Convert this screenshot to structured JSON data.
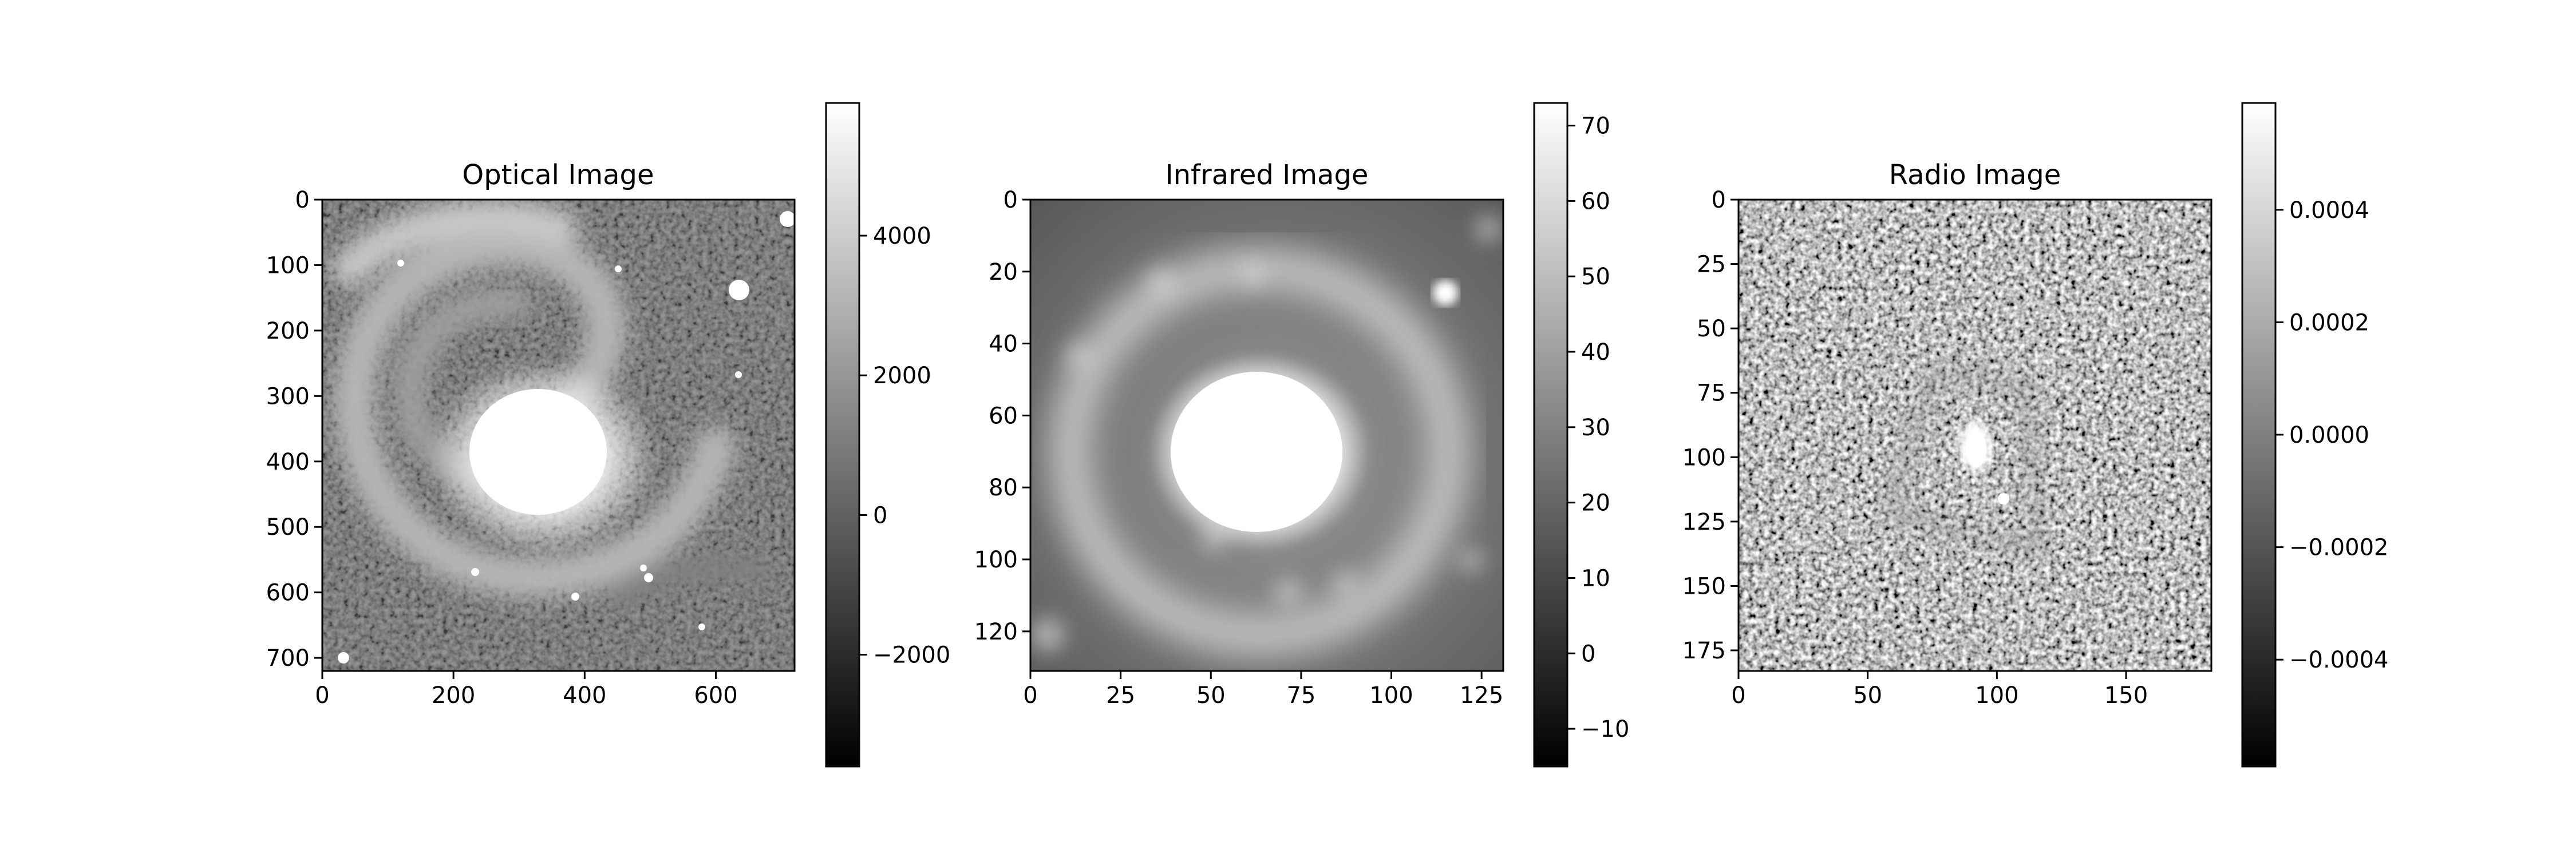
{
  "chart_data": [
    {
      "type": "heatmap",
      "title": "Optical Image",
      "colormap": "gray",
      "x_ticks": [
        "0",
        "200",
        "400",
        "600"
      ],
      "y_ticks": [
        "0",
        "100",
        "200",
        "300",
        "400",
        "500",
        "600",
        "700"
      ],
      "xlim": [
        0,
        720
      ],
      "ylim": [
        720,
        0
      ],
      "colorbar_ticks": [
        "−2000",
        "0",
        "2000",
        "4000"
      ],
      "colorbar_range": [
        -3600,
        5900
      ]
    },
    {
      "type": "heatmap",
      "title": "Infrared Image",
      "colormap": "gray",
      "x_ticks": [
        "0",
        "25",
        "50",
        "75",
        "100",
        "125"
      ],
      "y_ticks": [
        "0",
        "20",
        "40",
        "60",
        "80",
        "100",
        "120"
      ],
      "xlim": [
        0,
        131
      ],
      "ylim": [
        131,
        0
      ],
      "colorbar_ticks": [
        "−10",
        "0",
        "10",
        "20",
        "30",
        "40",
        "50",
        "60",
        "70"
      ],
      "colorbar_range": [
        -15,
        73
      ]
    },
    {
      "type": "heatmap",
      "title": "Radio Image",
      "colormap": "gray",
      "x_ticks": [
        "0",
        "50",
        "100",
        "150"
      ],
      "y_ticks": [
        "0",
        "25",
        "50",
        "75",
        "100",
        "125",
        "150",
        "175"
      ],
      "xlim": [
        0,
        183
      ],
      "ylim": [
        183,
        0
      ],
      "colorbar_ticks": [
        "−0.0004",
        "−0.0002",
        "0.0000",
        "0.0002",
        "0.0004"
      ],
      "colorbar_range": [
        -0.00059,
        0.00059
      ]
    }
  ]
}
